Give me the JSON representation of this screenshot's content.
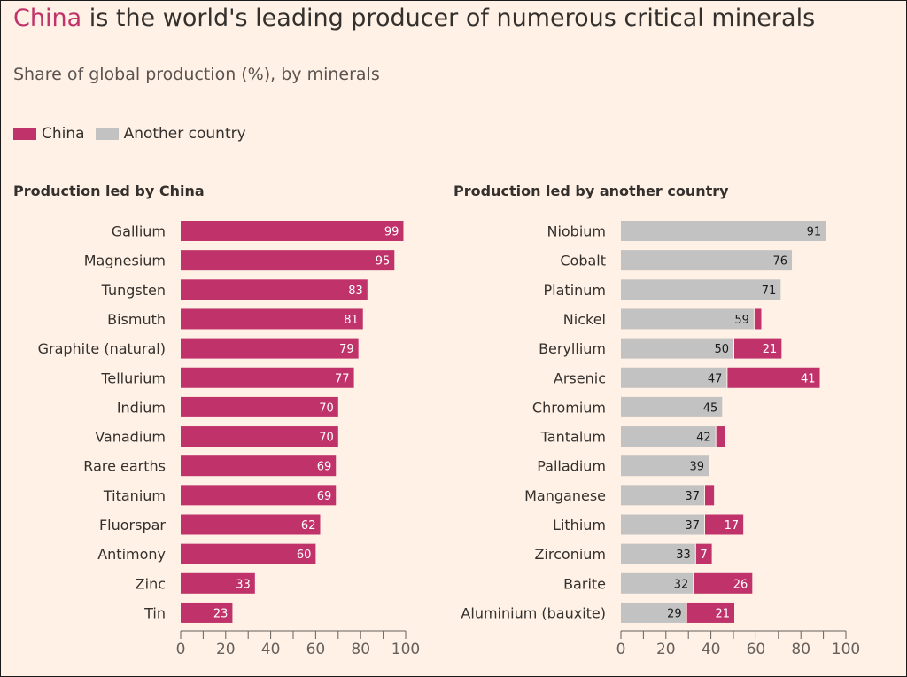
{
  "title": {
    "highlight": "China",
    "rest": " is the world's leading producer of numerous critical minerals"
  },
  "subtitle": "Share of global production (%), by minerals",
  "legend": [
    {
      "label": "China",
      "color": "#c0326a"
    },
    {
      "label": "Another country",
      "color": "#c2c2c2"
    }
  ],
  "colors": {
    "china": "#c0326a",
    "other": "#c2c2c2"
  },
  "chart_data": [
    {
      "type": "bar",
      "orientation": "horizontal",
      "title": "Production led by China",
      "categories": [
        "Gallium",
        "Magnesium",
        "Tungsten",
        "Bismuth",
        "Graphite (natural)",
        "Tellurium",
        "Indium",
        "Vanadium",
        "Rare earths",
        "Titanium",
        "Fluorspar",
        "Antimony",
        "Zinc",
        "Tin"
      ],
      "series": [
        {
          "name": "China",
          "values": [
            99,
            95,
            83,
            81,
            79,
            77,
            70,
            70,
            69,
            69,
            62,
            60,
            33,
            23
          ]
        }
      ],
      "xlim": [
        0,
        100
      ],
      "xticks": [
        0,
        20,
        40,
        60,
        80,
        100
      ]
    },
    {
      "type": "bar",
      "orientation": "horizontal",
      "stacked": true,
      "title": "Production led by another country",
      "categories": [
        "Niobium",
        "Cobalt",
        "Platinum",
        "Nickel",
        "Beryllium",
        "Arsenic",
        "Chromium",
        "Tantalum",
        "Palladium",
        "Manganese",
        "Lithium",
        "Zirconium",
        "Barite",
        "Aluminium (bauxite)"
      ],
      "series": [
        {
          "name": "Another country",
          "values": [
            91,
            76,
            71,
            59,
            50,
            47,
            45,
            42,
            39,
            37,
            37,
            33,
            32,
            29
          ]
        },
        {
          "name": "China",
          "values": [
            0,
            0,
            0,
            3,
            21,
            41,
            0,
            4,
            0,
            4,
            17,
            7,
            26,
            21
          ]
        }
      ],
      "china_labels": [
        null,
        null,
        null,
        null,
        21,
        41,
        null,
        null,
        null,
        null,
        17,
        7,
        26,
        21
      ],
      "xlim": [
        0,
        100
      ],
      "xticks": [
        0,
        20,
        40,
        60,
        80,
        100
      ]
    }
  ]
}
